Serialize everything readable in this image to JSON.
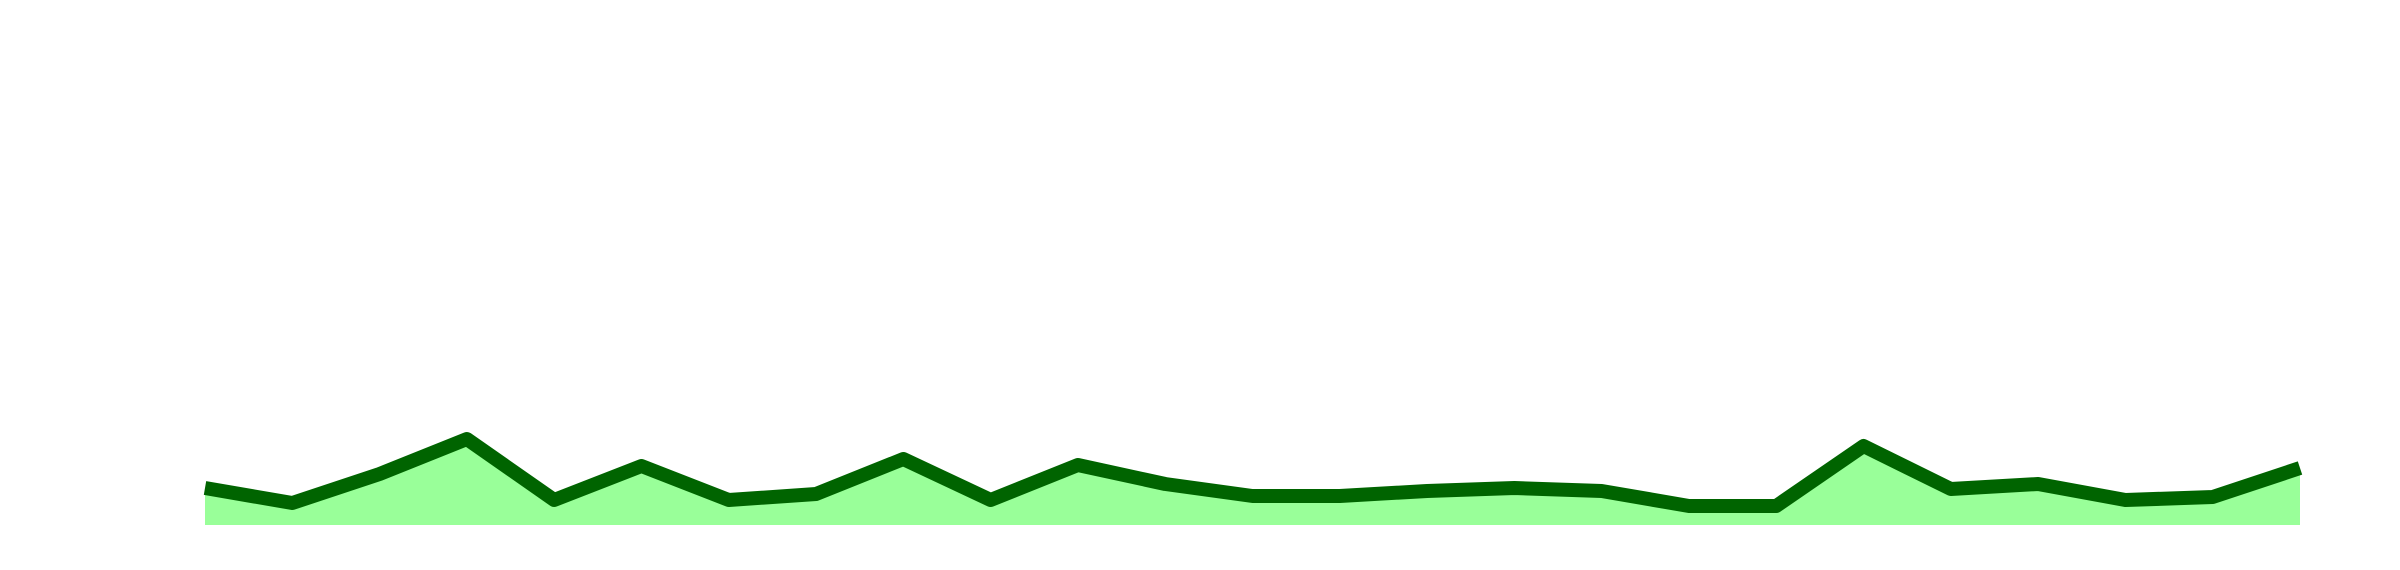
{
  "chart_data": {
    "type": "area",
    "values": [
      37,
      22,
      51,
      86,
      25,
      59,
      25,
      31,
      66,
      25,
      60,
      41,
      29,
      29,
      34,
      37,
      34,
      19,
      19,
      79,
      36,
      41,
      25,
      28,
      57
    ],
    "color": "#006400",
    "fill": "#99ff99",
    "ylim": [
      0,
      525
    ]
  }
}
